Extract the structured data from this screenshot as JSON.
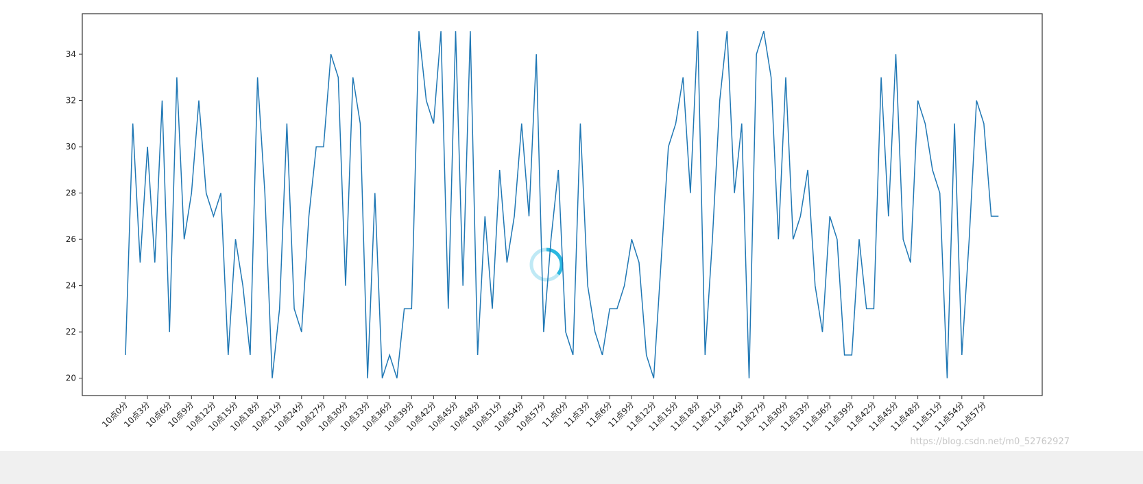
{
  "chart_data": {
    "type": "line",
    "categories": [
      "10点0分",
      null,
      null,
      "10点3分",
      null,
      null,
      "10点6分",
      null,
      null,
      "10点9分",
      null,
      null,
      "10点12分",
      null,
      null,
      "10点15分",
      null,
      null,
      "10点18分",
      null,
      null,
      "10点21分",
      null,
      null,
      "10点24分",
      null,
      null,
      "10点27分",
      null,
      null,
      "10点30分",
      null,
      null,
      "10点33分",
      null,
      null,
      "10点36分",
      null,
      null,
      "10点39分",
      null,
      null,
      "10点42分",
      null,
      null,
      "10点45分",
      null,
      null,
      "10点48分",
      null,
      null,
      "10点51分",
      null,
      null,
      "10点54分",
      null,
      null,
      "10点57分",
      null,
      null,
      "11点0分",
      null,
      null,
      "11点3分",
      null,
      null,
      "11点6分",
      null,
      null,
      "11点9分",
      null,
      null,
      "11点12分",
      null,
      null,
      "11点15分",
      null,
      null,
      "11点18分",
      null,
      null,
      "11点21分",
      null,
      null,
      "11点24分",
      null,
      null,
      "11点27分",
      null,
      null,
      "11点30分",
      null,
      null,
      "11点33分",
      null,
      null,
      "11点36分",
      null,
      null,
      "11点39分",
      null,
      null,
      "11点42分",
      null,
      null,
      "11点45分",
      null,
      null,
      "11点48分",
      null,
      null,
      "11点51分",
      null,
      null,
      "11点54分",
      null,
      null,
      "11点57分",
      null,
      null
    ],
    "values": [
      21,
      31,
      25,
      30,
      25,
      32,
      22,
      33,
      26,
      28,
      32,
      28,
      27,
      28,
      21,
      26,
      24,
      21,
      33,
      28,
      20,
      23,
      31,
      23,
      22,
      27,
      30,
      30,
      34,
      33,
      24,
      33,
      31,
      20,
      28,
      20,
      21,
      20,
      23,
      23,
      35,
      32,
      31,
      35,
      23,
      35,
      24,
      35,
      21,
      27,
      23,
      29,
      25,
      27,
      31,
      27,
      34,
      22,
      26,
      29,
      22,
      21,
      31,
      24,
      22,
      21,
      23,
      23,
      24,
      26,
      25,
      21,
      20,
      25,
      30,
      31,
      33,
      28,
      35,
      21,
      26,
      32,
      35,
      28,
      31,
      20,
      34,
      35,
      33,
      26,
      33,
      26,
      27,
      29,
      24,
      22,
      27,
      26,
      21,
      21,
      26,
      23,
      23,
      33,
      27,
      34,
      26,
      25,
      32,
      31,
      29,
      28,
      20,
      31,
      21,
      26,
      32,
      31,
      27,
      27
    ],
    "color": "#1f77b4",
    "ylim": [
      19.25,
      35.75
    ],
    "yticks": [
      20,
      22,
      24,
      26,
      28,
      30,
      32,
      34
    ]
  },
  "watermark": "https://blog.csdn.net/m0_52762927"
}
